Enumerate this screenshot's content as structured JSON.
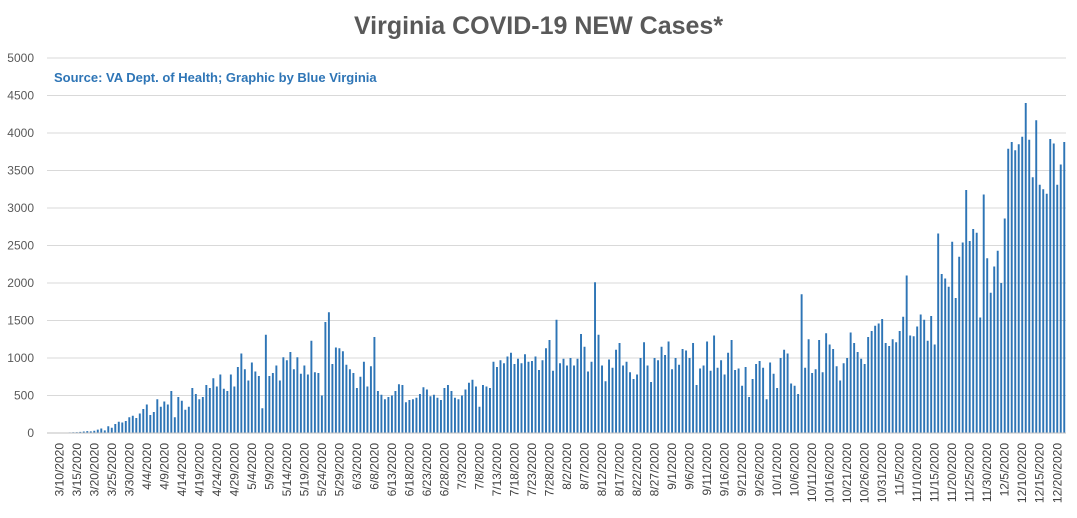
{
  "chart_data": {
    "type": "bar",
    "title": "Virginia COVID-19 NEW Cases*",
    "source": "Source: VA Dept. of Health; Graphic by Blue Virginia",
    "xlabel": "",
    "ylabel": "",
    "ylim": [
      0,
      5000
    ],
    "yticks": [
      "0",
      "500",
      "1000",
      "1500",
      "2000",
      "2500",
      "3000",
      "3500",
      "4000",
      "4500",
      "5000"
    ],
    "grid": true,
    "start_date": "2020-03-07",
    "x_tick_labels": [
      "3/10/2020",
      "3/15/2020",
      "3/20/2020",
      "3/25/2020",
      "3/30/2020",
      "4/4/2020",
      "4/9/2020",
      "4/14/2020",
      "4/19/2020",
      "4/24/2020",
      "4/29/2020",
      "5/4/2020",
      "5/9/2020",
      "5/14/2020",
      "5/19/2020",
      "5/24/2020",
      "5/29/2020",
      "6/3/2020",
      "6/8/2020",
      "6/13/2020",
      "6/18/2020",
      "6/23/2020",
      "6/28/2020",
      "7/3/2020",
      "7/8/2020",
      "7/13/2020",
      "7/18/2020",
      "7/23/2020",
      "7/28/2020",
      "8/2/2020",
      "8/7/2020",
      "8/12/2020",
      "8/17/2020",
      "8/22/2020",
      "8/27/2020",
      "9/1/2020",
      "9/6/2020",
      "9/11/2020",
      "9/16/2020",
      "9/21/2020",
      "9/26/2020",
      "10/1/2020",
      "10/6/2020",
      "10/11/2020",
      "10/16/2020",
      "10/21/2020",
      "10/26/2020",
      "10/31/2020",
      "11/5/2020",
      "11/10/2020",
      "11/15/2020",
      "11/20/2020",
      "11/25/2020",
      "11/30/2020",
      "12/5/2020",
      "12/10/2020",
      "12/15/2020",
      "12/20/2020"
    ],
    "series": [
      {
        "color": "#2e75b6",
        "values": [
          2,
          1,
          2,
          3,
          3,
          5,
          8,
          10,
          11,
          15,
          20,
          25,
          22,
          30,
          45,
          60,
          35,
          90,
          70,
          120,
          150,
          140,
          160,
          210,
          230,
          200,
          260,
          320,
          380,
          240,
          280,
          450,
          350,
          420,
          380,
          560,
          210,
          480,
          430,
          310,
          350,
          600,
          520,
          450,
          480,
          640,
          600,
          730,
          620,
          780,
          590,
          560,
          780,
          620,
          880,
          1060,
          850,
          700,
          940,
          820,
          760,
          330,
          1310,
          760,
          800,
          900,
          700,
          1010,
          970,
          1080,
          850,
          1010,
          790,
          900,
          780,
          1230,
          810,
          800,
          500,
          1480,
          1610,
          920,
          1140,
          1130,
          1090,
          910,
          850,
          800,
          600,
          750,
          950,
          620,
          890,
          1280,
          560,
          510,
          450,
          480,
          500,
          560,
          650,
          640,
          410,
          440,
          450,
          470,
          520,
          610,
          580,
          490,
          510,
          470,
          440,
          600,
          640,
          560,
          470,
          450,
          500,
          580,
          670,
          710,
          620,
          350,
          640,
          620,
          600,
          950,
          880,
          970,
          930,
          1020,
          1070,
          920,
          990,
          930,
          1050,
          950,
          960,
          1020,
          840,
          970,
          1130,
          1240,
          830,
          1510,
          930,
          990,
          900,
          1000,
          900,
          990,
          1320,
          1150,
          820,
          950,
          2010,
          1310,
          900,
          690,
          980,
          870,
          1110,
          1200,
          900,
          950,
          810,
          720,
          780,
          1000,
          1210,
          900,
          680,
          1000,
          970,
          1150,
          1040,
          1220,
          850,
          1000,
          910,
          1120,
          1100,
          1000,
          1200,
          640,
          860,
          900,
          1220,
          830,
          1300,
          870,
          970,
          780,
          1070,
          1240,
          840,
          860,
          630,
          880,
          480,
          720,
          920,
          960,
          870,
          450,
          940,
          790,
          600,
          1000,
          1110,
          1060,
          660,
          630,
          520,
          1850,
          870,
          1250,
          800,
          850,
          1240,
          810,
          1330,
          1180,
          1120,
          890,
          700,
          930,
          1000,
          1340,
          1200,
          1080,
          990,
          920,
          1280,
          1360,
          1430,
          1460,
          1520,
          1200,
          1160,
          1250,
          1210,
          1360,
          1550,
          2100,
          1300,
          1290,
          1420,
          1580,
          1510,
          1230,
          1560,
          1180,
          2660,
          2120,
          2060,
          1950,
          2550,
          1800,
          2350,
          2540,
          3240,
          2560,
          2720,
          2670,
          1540,
          3180,
          2330,
          1870,
          2220,
          2430,
          2000,
          2860,
          3790,
          3880,
          3770,
          3850,
          3950,
          4400,
          3910,
          3410,
          4170,
          3310,
          3250,
          3190,
          3920,
          3860,
          3310,
          3580,
          3880
        ]
      }
    ]
  }
}
